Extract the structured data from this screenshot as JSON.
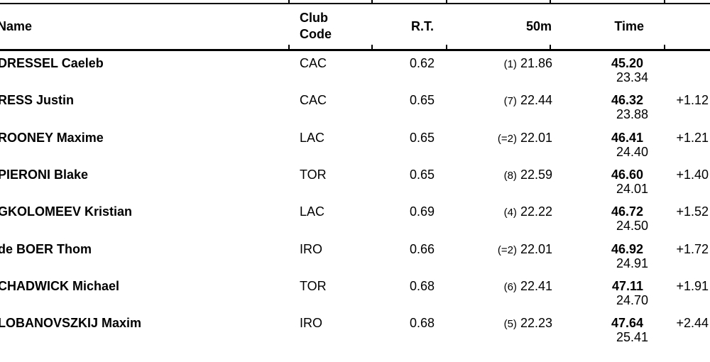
{
  "colors": {
    "text": "#000000",
    "rule": "#000000",
    "background": "#ffffff"
  },
  "layout_ticks_x": [
    406,
    523,
    628,
    774,
    935
  ],
  "header": {
    "name": "Name",
    "club_line1": "Club",
    "club_line2": "Code",
    "reaction_time": "R.T.",
    "split_50m": "50m",
    "time": "Time"
  },
  "table": {
    "rows": [
      {
        "name": "DRESSEL Caeleb",
        "club": "CAC",
        "rt": "0.62",
        "rank": "(1)",
        "split50": "21.86",
        "time": "45.20",
        "split100": "23.34",
        "diff": ""
      },
      {
        "name": "RESS Justin",
        "club": "CAC",
        "rt": "0.65",
        "rank": "(7)",
        "split50": "22.44",
        "time": "46.32",
        "split100": "23.88",
        "diff": "+1.12"
      },
      {
        "name": "ROONEY Maxime",
        "club": "LAC",
        "rt": "0.65",
        "rank": "(=2)",
        "split50": "22.01",
        "time": "46.41",
        "split100": "24.40",
        "diff": "+1.21"
      },
      {
        "name": "PIERONI Blake",
        "club": "TOR",
        "rt": "0.65",
        "rank": "(8)",
        "split50": "22.59",
        "time": "46.60",
        "split100": "24.01",
        "diff": "+1.40"
      },
      {
        "name": "GKOLOMEEV Kristian",
        "club": "LAC",
        "rt": "0.69",
        "rank": "(4)",
        "split50": "22.22",
        "time": "46.72",
        "split100": "24.50",
        "diff": "+1.52"
      },
      {
        "name": "de BOER Thom",
        "club": "IRO",
        "rt": "0.66",
        "rank": "(=2)",
        "split50": "22.01",
        "time": "46.92",
        "split100": "24.91",
        "diff": "+1.72"
      },
      {
        "name": "CHADWICK Michael",
        "club": "TOR",
        "rt": "0.68",
        "rank": "(6)",
        "split50": "22.41",
        "time": "47.11",
        "split100": "24.70",
        "diff": "+1.91"
      },
      {
        "name": "LOBANOVSZKIJ Maxim",
        "club": "IRO",
        "rt": "0.68",
        "rank": "(5)",
        "split50": "22.23",
        "time": "47.64",
        "split100": "25.41",
        "diff": "+2.44"
      }
    ]
  }
}
